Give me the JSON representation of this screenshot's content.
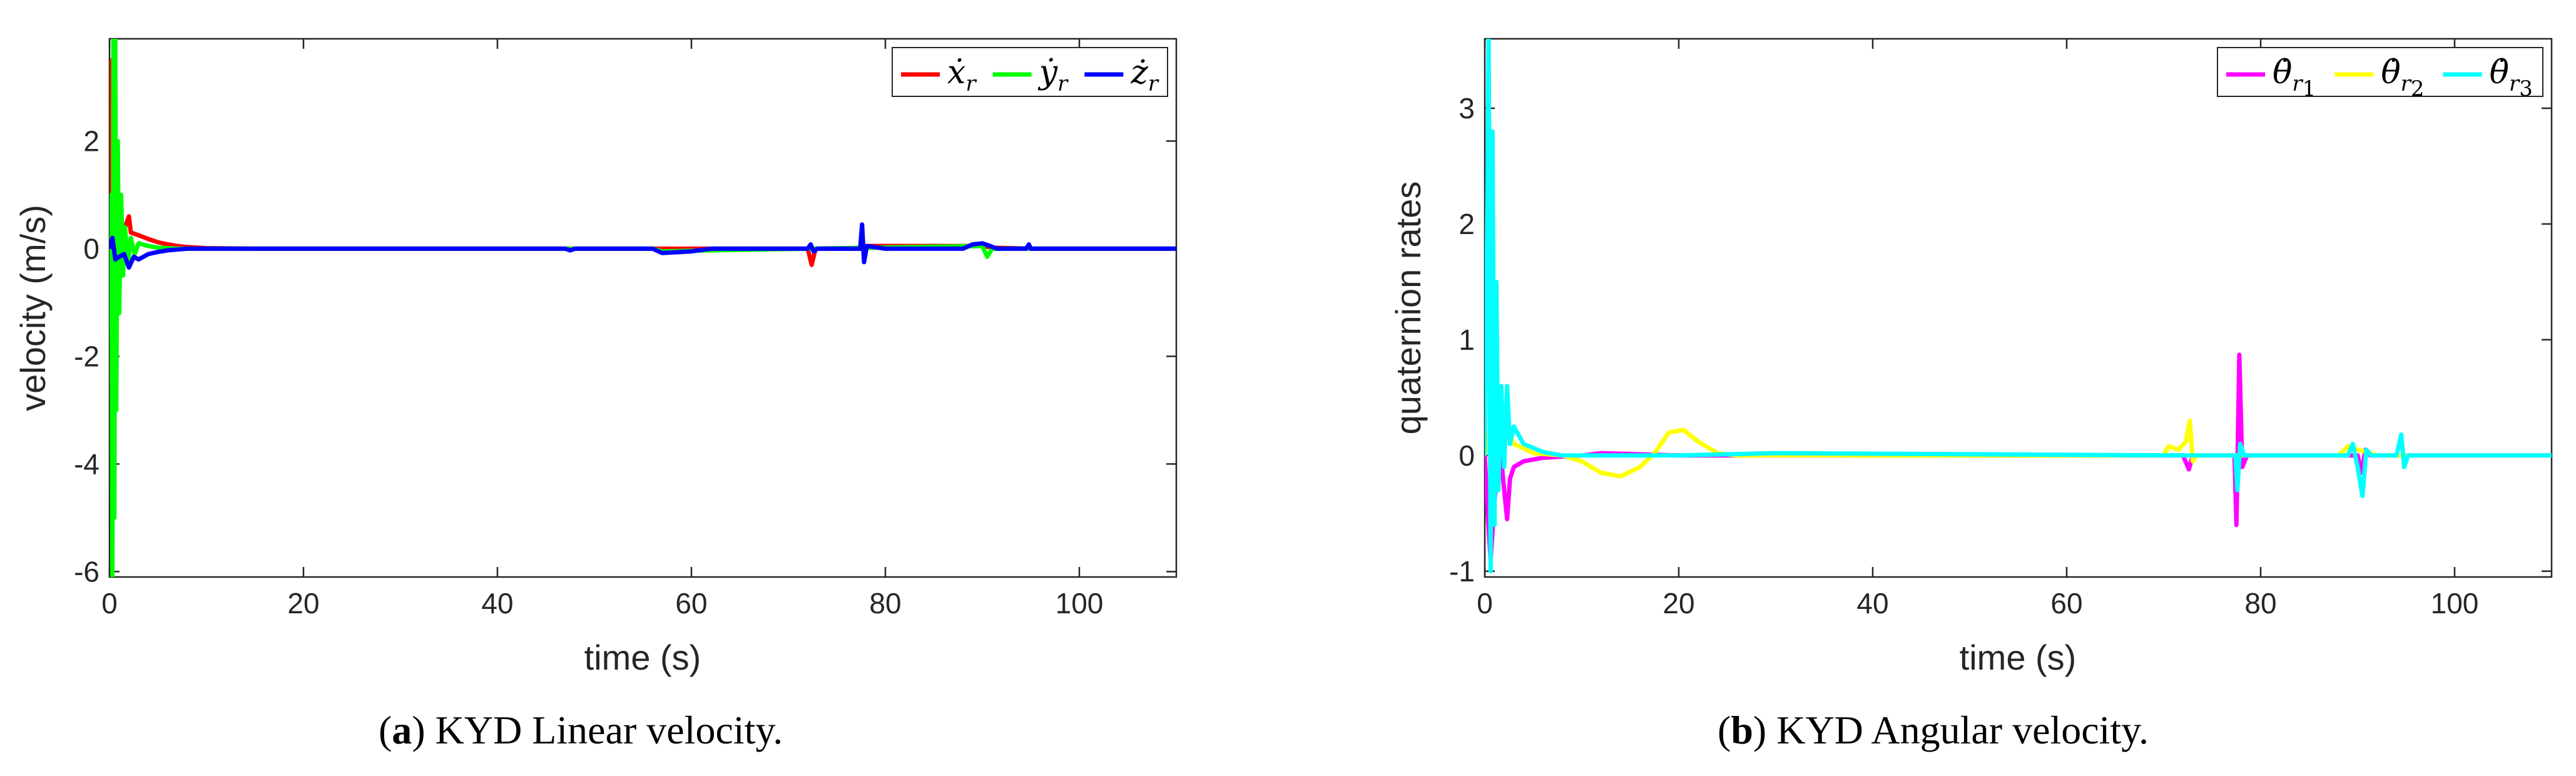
{
  "chart_data": [
    {
      "type": "line",
      "caption_letter": "a",
      "caption_text": "KYD Linear velocity.",
      "xlabel": "time (s)",
      "ylabel": "velocity (m/s)",
      "xlim": [
        0,
        110
      ],
      "ylim": [
        -6.1,
        3.9
      ],
      "xticks": [
        0,
        20,
        40,
        60,
        80,
        100
      ],
      "yticks": [
        -6,
        -4,
        -2,
        0,
        2
      ],
      "legend_position": "top-right",
      "series": [
        {
          "name": "ẋ",
          "sub": "r",
          "color": "#ff0000",
          "points": [
            [
              0,
              0
            ],
            [
              0.1,
              1.0
            ],
            [
              0.2,
              3.5
            ],
            [
              0.35,
              -0.3
            ],
            [
              0.5,
              1.8
            ],
            [
              0.7,
              0.4
            ],
            [
              1.0,
              0.6
            ],
            [
              1.5,
              0.35
            ],
            [
              2,
              0.6
            ],
            [
              2.2,
              0.3
            ],
            [
              3,
              0.25
            ],
            [
              4,
              0.18
            ],
            [
              5,
              0.12
            ],
            [
              6,
              0.08
            ],
            [
              7,
              0.05
            ],
            [
              8,
              0.03
            ],
            [
              10,
              0.01
            ],
            [
              15,
              0
            ],
            [
              40,
              0
            ],
            [
              72,
              0
            ],
            [
              72.4,
              -0.3
            ],
            [
              72.8,
              0
            ],
            [
              77.5,
              0
            ],
            [
              78,
              0.05
            ],
            [
              90,
              0.05
            ],
            [
              91,
              0.02
            ],
            [
              95,
              0
            ],
            [
              110,
              0
            ]
          ]
        },
        {
          "name": "ẏ",
          "sub": "r",
          "color": "#00ff00",
          "points": [
            [
              0,
              0
            ],
            [
              0.1,
              -1.5
            ],
            [
              0.2,
              1.0
            ],
            [
              0.3,
              -6.1
            ],
            [
              0.4,
              3.9
            ],
            [
              0.5,
              -5.0
            ],
            [
              0.6,
              3.9
            ],
            [
              0.7,
              -3.0
            ],
            [
              0.85,
              2.0
            ],
            [
              1.0,
              -1.2
            ],
            [
              1.2,
              1.0
            ],
            [
              1.4,
              -0.5
            ],
            [
              1.6,
              0.4
            ],
            [
              1.9,
              -0.3
            ],
            [
              2.2,
              0.2
            ],
            [
              2.6,
              -0.1
            ],
            [
              3,
              0.1
            ],
            [
              4,
              0.05
            ],
            [
              5,
              0.02
            ],
            [
              7,
              0
            ],
            [
              56,
              0
            ],
            [
              57,
              -0.05
            ],
            [
              62,
              -0.03
            ],
            [
              72,
              0
            ],
            [
              90,
              0.05
            ],
            [
              90.5,
              -0.15
            ],
            [
              91,
              0
            ],
            [
              110,
              0
            ]
          ]
        },
        {
          "name": "ż",
          "sub": "r",
          "color": "#0000ff",
          "points": [
            [
              0,
              0
            ],
            [
              0.3,
              0.2
            ],
            [
              0.6,
              -0.2
            ],
            [
              1,
              -0.15
            ],
            [
              1.5,
              -0.1
            ],
            [
              2,
              -0.35
            ],
            [
              2.5,
              -0.15
            ],
            [
              3,
              -0.2
            ],
            [
              4,
              -0.1
            ],
            [
              5,
              -0.06
            ],
            [
              6,
              -0.03
            ],
            [
              8,
              0
            ],
            [
              47,
              0
            ],
            [
              47.5,
              -0.03
            ],
            [
              48,
              0
            ],
            [
              56,
              0
            ],
            [
              57,
              -0.08
            ],
            [
              60,
              -0.05
            ],
            [
              62,
              0
            ],
            [
              72,
              0
            ],
            [
              72.3,
              0.08
            ],
            [
              72.6,
              -0.05
            ],
            [
              73,
              0
            ],
            [
              77.4,
              0
            ],
            [
              77.6,
              0.45
            ],
            [
              77.8,
              -0.25
            ],
            [
              78.1,
              0.05
            ],
            [
              80,
              0
            ],
            [
              88,
              0
            ],
            [
              89,
              0.08
            ],
            [
              90,
              0.1
            ],
            [
              90.8,
              0.05
            ],
            [
              91.5,
              0
            ],
            [
              94.5,
              0
            ],
            [
              94.8,
              0.08
            ],
            [
              95,
              0
            ],
            [
              110,
              0
            ]
          ]
        }
      ]
    },
    {
      "type": "line",
      "caption_letter": "b",
      "caption_text": "KYD Angular velocity.",
      "xlabel": "time (s)",
      "ylabel": "quaternion rates",
      "xlim": [
        0,
        110
      ],
      "ylim": [
        -1.05,
        3.6
      ],
      "xticks": [
        0,
        20,
        40,
        60,
        80,
        100
      ],
      "yticks": [
        -1,
        0,
        1,
        2,
        3
      ],
      "legend_position": "top-right",
      "series": [
        {
          "name": "θ̇",
          "sub": "r",
          "subnum": "1",
          "color": "#ff00ff",
          "points": [
            [
              0,
              0
            ],
            [
              0.3,
              -0.5
            ],
            [
              0.6,
              -0.9
            ],
            [
              1,
              -0.4
            ],
            [
              1.3,
              -0.1
            ],
            [
              1.6,
              0.05
            ],
            [
              2,
              -0.3
            ],
            [
              2.3,
              -0.55
            ],
            [
              2.6,
              -0.2
            ],
            [
              3,
              -0.1
            ],
            [
              4,
              -0.05
            ],
            [
              6,
              -0.02
            ],
            [
              10,
              0
            ],
            [
              12,
              0.02
            ],
            [
              20,
              0
            ],
            [
              72,
              0
            ],
            [
              72.6,
              -0.12
            ],
            [
              73,
              0
            ],
            [
              77.3,
              0
            ],
            [
              77.5,
              -0.6
            ],
            [
              77.8,
              0.87
            ],
            [
              78.1,
              -0.1
            ],
            [
              78.6,
              0
            ],
            [
              90,
              0
            ],
            [
              90.4,
              -0.15
            ],
            [
              90.8,
              0.05
            ],
            [
              91.3,
              0
            ],
            [
              110,
              0
            ]
          ]
        },
        {
          "name": "θ̇",
          "sub": "r",
          "subnum": "2",
          "color": "#ffff00",
          "points": [
            [
              0,
              0
            ],
            [
              0.5,
              0.2
            ],
            [
              1,
              0.6
            ],
            [
              1.5,
              0.2
            ],
            [
              2,
              0.3
            ],
            [
              3,
              0.1
            ],
            [
              5,
              0.02
            ],
            [
              8,
              0
            ],
            [
              10,
              -0.05
            ],
            [
              12,
              -0.15
            ],
            [
              14,
              -0.18
            ],
            [
              16,
              -0.1
            ],
            [
              17.5,
              0.02
            ],
            [
              19,
              0.2
            ],
            [
              20.5,
              0.22
            ],
            [
              22,
              0.12
            ],
            [
              24,
              0.02
            ],
            [
              26,
              0
            ],
            [
              70,
              0
            ],
            [
              70.5,
              0.08
            ],
            [
              71.5,
              0.05
            ],
            [
              72.3,
              0.12
            ],
            [
              72.7,
              0.3
            ],
            [
              73,
              -0.05
            ],
            [
              73.4,
              0
            ],
            [
              88,
              0
            ],
            [
              89,
              0.08
            ],
            [
              90,
              0.05
            ],
            [
              91,
              0.03
            ],
            [
              92,
              0
            ],
            [
              110,
              0
            ]
          ]
        },
        {
          "name": "θ̇",
          "sub": "r",
          "subnum": "3",
          "color": "#00ffff",
          "points": [
            [
              0,
              0
            ],
            [
              0.2,
              1.5
            ],
            [
              0.4,
              3.6
            ],
            [
              0.6,
              -1.0
            ],
            [
              0.8,
              2.8
            ],
            [
              1.0,
              -0.6
            ],
            [
              1.2,
              1.5
            ],
            [
              1.4,
              -0.3
            ],
            [
              1.7,
              0.6
            ],
            [
              2,
              -0.1
            ],
            [
              2.3,
              0.6
            ],
            [
              2.6,
              0.1
            ],
            [
              3,
              0.25
            ],
            [
              4,
              0.1
            ],
            [
              6,
              0.03
            ],
            [
              8,
              0
            ],
            [
              20,
              0
            ],
            [
              30,
              0.02
            ],
            [
              72,
              0
            ],
            [
              77.4,
              0
            ],
            [
              77.6,
              -0.3
            ],
            [
              77.9,
              0.1
            ],
            [
              78.3,
              0
            ],
            [
              89,
              0
            ],
            [
              89.5,
              0.1
            ],
            [
              90,
              -0.1
            ],
            [
              90.5,
              -0.35
            ],
            [
              90.9,
              0.05
            ],
            [
              91.4,
              0
            ],
            [
              94,
              0
            ],
            [
              94.5,
              0.18
            ],
            [
              94.8,
              -0.1
            ],
            [
              95.2,
              0
            ],
            [
              110,
              0
            ]
          ]
        }
      ]
    }
  ]
}
